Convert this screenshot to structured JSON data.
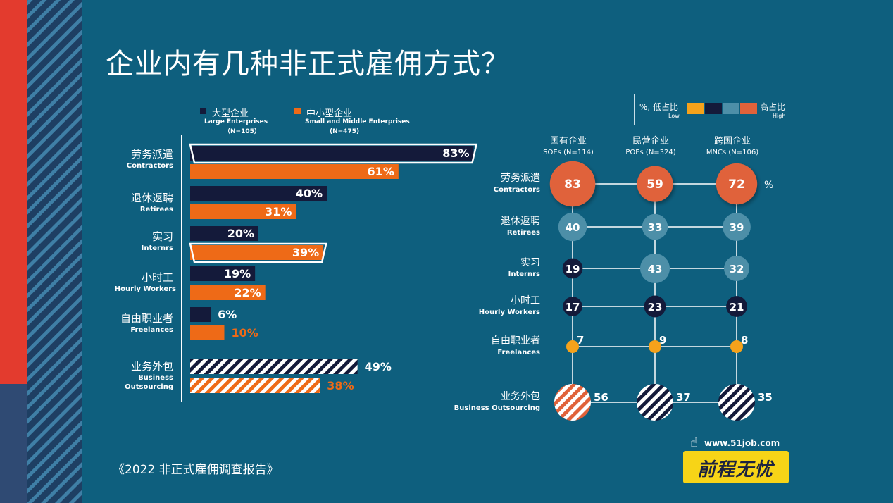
{
  "title": "企业内有几种非正式雇佣方式？",
  "source": "《2022 非正式雇佣调查报告》",
  "logo": {
    "url": "www.51job.com",
    "brand": "前程无忧"
  },
  "colors": {
    "background": "#0e5f7e",
    "large": "#141a3a",
    "small": "#ee6a17",
    "sme_label": "#ee6a17",
    "low": "#f5a21b",
    "mid_dark": "#141a3a",
    "mid_light": "#4d8fa8",
    "high": "#e0623a"
  },
  "left_legend": {
    "large": {
      "zh": "大型企业",
      "en": "Large Enterprises",
      "n": "（N=105）"
    },
    "small": {
      "zh": "中小型企业",
      "en": "Small and Middle Enterprises",
      "n": "(N=475)"
    }
  },
  "scale_legend": {
    "left": "%, 低占比",
    "left_sub": "Low",
    "right": "高占比",
    "right_sub": "High"
  },
  "categories": [
    {
      "zh": "劳务派遣",
      "en": "Contractors"
    },
    {
      "zh": "退休返聘",
      "en": "Retirees"
    },
    {
      "zh": "实习",
      "en": "Internrs"
    },
    {
      "zh": "小时工",
      "en": "Hourly Workers"
    },
    {
      "zh": "自由职业者",
      "en": "Freelances"
    },
    {
      "zh": "业务外包",
      "en": "Business Outsourcing",
      "en_line1": "Business",
      "en_line2": "Outsourcing"
    }
  ],
  "chart_data": [
    {
      "type": "bar",
      "orientation": "horizontal",
      "categories": [
        "劳务派遣 Contractors",
        "退休返聘 Retirees",
        "实习 Internrs",
        "小时工 Hourly Workers",
        "自由职业者 Freelances",
        "业务外包 Business Outsourcing"
      ],
      "series": [
        {
          "name": "大型企业 Large Enterprises (N=105)",
          "values": [
            83,
            40,
            20,
            19,
            6,
            49
          ],
          "labels": [
            "83%",
            "40%",
            "20%",
            "19%",
            "6%",
            "49%"
          ]
        },
        {
          "name": "中小型企业 Small and Middle Enterprises (N=475)",
          "values": [
            61,
            31,
            39,
            22,
            10,
            38
          ],
          "labels": [
            "61%",
            "31%",
            "39%",
            "22%",
            "10%",
            "38%"
          ]
        }
      ],
      "highlighted": [
        [
          0,
          0
        ],
        [
          2,
          1
        ]
      ],
      "unit": "%"
    },
    {
      "type": "bubble-matrix",
      "columns": [
        {
          "zh": "国有企业",
          "en": "SOEs",
          "n": "(N=114)"
        },
        {
          "zh": "民营企业",
          "en": "POEs",
          "n": "(N=324)"
        },
        {
          "zh": "跨国企业",
          "en": "MNCs",
          "n": "(N=106)"
        }
      ],
      "rows": [
        "劳务派遣 Contractors",
        "退休返聘 Retirees",
        "实习 Internrs",
        "小时工 Hourly Workers",
        "自由职业者 Freelances",
        "业务外包 Business Outsourcing"
      ],
      "values": [
        [
          83,
          59,
          72
        ],
        [
          40,
          33,
          39
        ],
        [
          19,
          43,
          32
        ],
        [
          17,
          23,
          21
        ],
        [
          7,
          9,
          8
        ],
        [
          56,
          37,
          35
        ]
      ],
      "unit_label": "%"
    }
  ]
}
